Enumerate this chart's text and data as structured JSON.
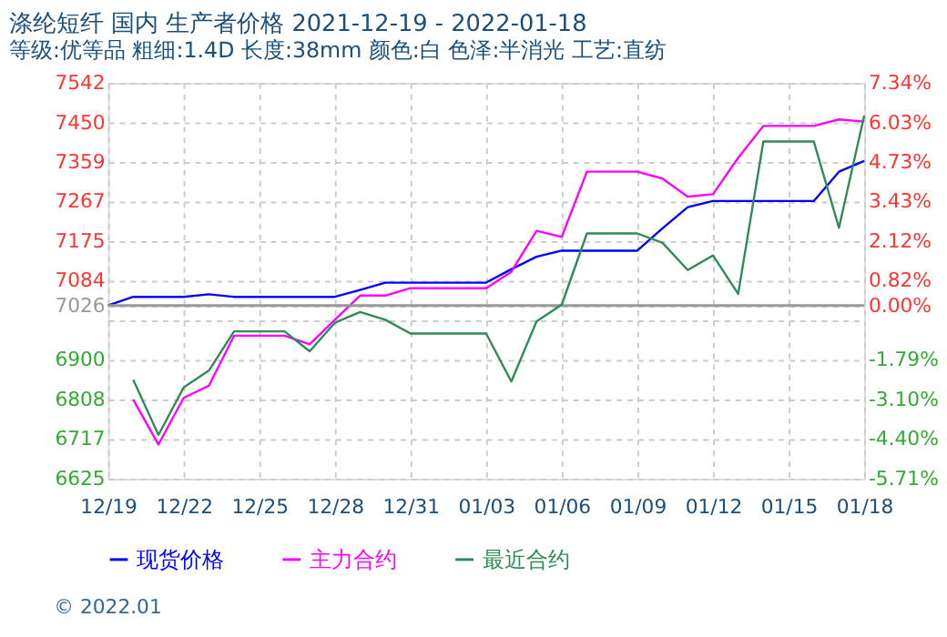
{
  "chart_data": {
    "type": "line",
    "title": "涤纶短纤 国内 生产者价格 2021-12-19 - 2022-01-18",
    "subtitle": "等级:优等品 粗细:1.4D 长度:38mm 颜色:白 色泽:半消光 工艺:直纺",
    "x": [
      "2021-12-19",
      "2021-12-20",
      "2021-12-21",
      "2021-12-22",
      "2021-12-23",
      "2021-12-24",
      "2021-12-25",
      "2021-12-26",
      "2021-12-27",
      "2021-12-28",
      "2021-12-29",
      "2021-12-30",
      "2021-12-31",
      "2022-01-01",
      "2022-01-02",
      "2022-01-03",
      "2022-01-04",
      "2022-01-05",
      "2022-01-06",
      "2022-01-07",
      "2022-01-08",
      "2022-01-09",
      "2022-01-10",
      "2022-01-11",
      "2022-01-12",
      "2022-01-13",
      "2022-01-14",
      "2022-01-15",
      "2022-01-16",
      "2022-01-17",
      "2022-01-18"
    ],
    "series": [
      {
        "name": "现货价格",
        "color": "#0000ff",
        "values": [
          7026,
          7046,
          7046,
          7046,
          7052,
          7046,
          7046,
          7046,
          7046,
          7046,
          7062,
          7079,
          7079,
          7079,
          7079,
          7079,
          7110,
          7139,
          7153,
          7153,
          7153,
          7153,
          7205,
          7254,
          7268,
          7268,
          7268,
          7268,
          7268,
          7336,
          7361
        ]
      },
      {
        "name": "主力合约",
        "color": "#ff00ff",
        "values": [
          null,
          6808,
          6704,
          6812,
          6840,
          6956,
          6956,
          6956,
          6936,
          6993,
          7049,
          7049,
          7066,
          7066,
          7066,
          7066,
          7104,
          7199,
          7185,
          7336,
          7336,
          7336,
          7320,
          7278,
          7284,
          7368,
          7442,
          7442,
          7442,
          7457,
          7452
        ]
      },
      {
        "name": "最近合约",
        "color": "#2e8b57",
        "values": [
          null,
          6854,
          6726,
          6836,
          6875,
          6966,
          6966,
          6966,
          6920,
          6986,
          7011,
          6993,
          6961,
          6961,
          6961,
          6961,
          6850,
          6989,
          7028,
          7193,
          7193,
          7193,
          7171,
          7108,
          7142,
          7053,
          7406,
          7406,
          7406,
          7206,
          7466
        ]
      }
    ],
    "xlim": [
      "2021-12-19",
      "2022-01-18"
    ],
    "xticks": [
      {
        "value": "2021-12-19",
        "label": "12/19"
      },
      {
        "value": "2021-12-22",
        "label": "12/22"
      },
      {
        "value": "2021-12-25",
        "label": "12/25"
      },
      {
        "value": "2021-12-28",
        "label": "12/28"
      },
      {
        "value": "2021-12-31",
        "label": "12/31"
      },
      {
        "value": "2022-01-03",
        "label": "01/03"
      },
      {
        "value": "2022-01-06",
        "label": "01/06"
      },
      {
        "value": "2022-01-09",
        "label": "01/09"
      },
      {
        "value": "2022-01-12",
        "label": "01/12"
      },
      {
        "value": "2022-01-15",
        "label": "01/15"
      },
      {
        "value": "2022-01-18",
        "label": "01/18"
      }
    ],
    "ylim": [
      6625,
      7542
    ],
    "yticks": [
      6625,
      6717,
      6808,
      6900,
      {
        "value": 6992,
        "label": null
      },
      7026,
      7084,
      7175,
      7267,
      7359,
      7450,
      7542
    ],
    "y2lim": [
      -5.71,
      7.34
    ],
    "y2ticks": [
      {
        "value": -5.71,
        "label": "-5.71%"
      },
      {
        "value": -4.4,
        "label": "-4.40%"
      },
      {
        "value": -3.1,
        "label": "-3.10%"
      },
      {
        "value": -1.79,
        "label": "-1.79%"
      },
      {
        "value": -0.48,
        "label": null
      },
      {
        "value": 0.0,
        "label": "0.00%"
      },
      {
        "value": 0.82,
        "label": "0.82%"
      },
      {
        "value": 2.12,
        "label": "2.12%"
      },
      {
        "value": 3.43,
        "label": "3.43%"
      },
      {
        "value": 4.73,
        "label": "4.73%"
      },
      {
        "value": 6.03,
        "label": "6.03%"
      },
      {
        "value": 7.34,
        "label": "7.34%"
      }
    ],
    "ref_lines": [
      {
        "axis": "y",
        "value": 7026,
        "color": "#999999",
        "line_style": "solid"
      }
    ],
    "grid": true,
    "legend": "bottom",
    "line_style": "solid",
    "marker": "none",
    "annotations": [
      "© 2022.01"
    ]
  }
}
